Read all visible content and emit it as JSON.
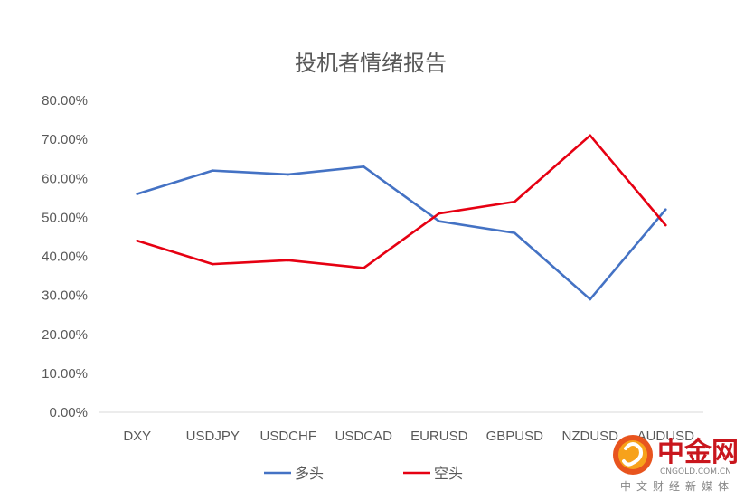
{
  "chart_data": {
    "type": "line",
    "title": "投机者情绪报告",
    "categories": [
      "DXY",
      "USDJPY",
      "USDCHF",
      "USDCAD",
      "EURUSD",
      "GBPUSD",
      "NZDUSD",
      "AUDUSD"
    ],
    "series": [
      {
        "name": "多头",
        "color": "#4472c4",
        "values": [
          56,
          62,
          61,
          63,
          49,
          46,
          29,
          52
        ]
      },
      {
        "name": "空头",
        "color": "#e60012",
        "values": [
          44,
          38,
          39,
          37,
          51,
          54,
          71,
          48
        ]
      }
    ],
    "ylim": [
      0,
      80
    ],
    "yticks": [
      "0.00%",
      "10.00%",
      "20.00%",
      "30.00%",
      "40.00%",
      "50.00%",
      "60.00%",
      "70.00%",
      "80.00%"
    ],
    "grid": false,
    "legend": "bottom"
  },
  "watermark": {
    "brand": "中金网",
    "domain": "CNGOLD.COM.CN",
    "slogan": "中文财经新媒体",
    "icon": "cngold-logo-icon"
  }
}
